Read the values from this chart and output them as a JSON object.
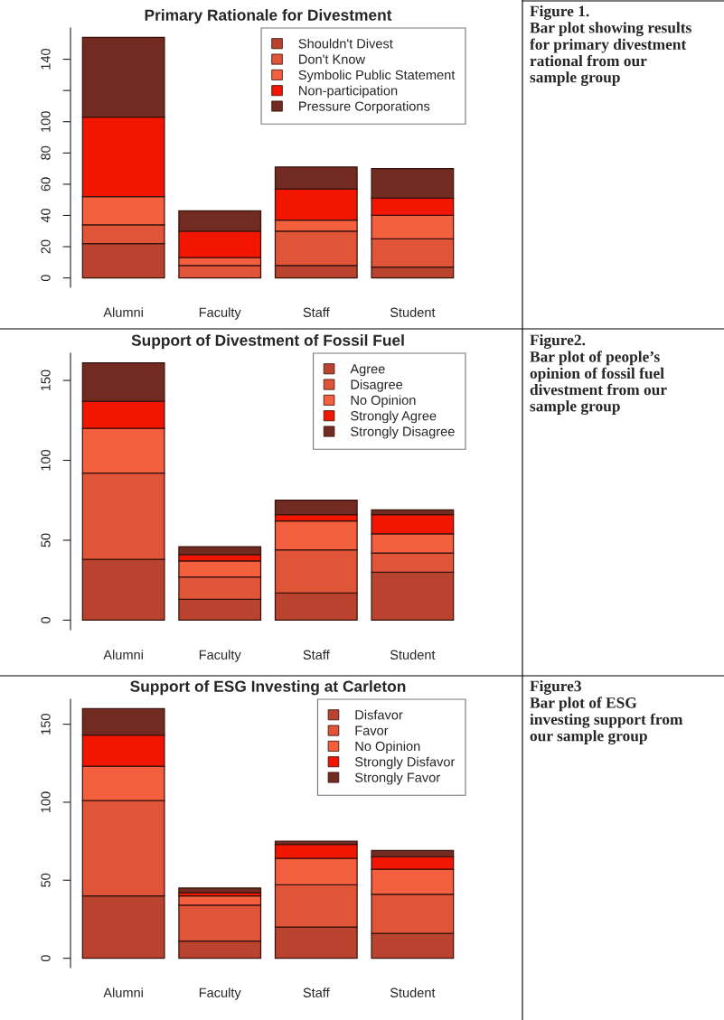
{
  "chart_data": [
    {
      "type": "bar",
      "stacked": true,
      "title": "Primary Rationale for Divestment",
      "categories": [
        "Alumni",
        "Faculty",
        "Staff",
        "Student"
      ],
      "series": [
        {
          "name": "Shouldn't Divest",
          "color": "#b9432e",
          "values": [
            22,
            0,
            8,
            7
          ]
        },
        {
          "name": "Don't Know",
          "color": "#e05438",
          "values": [
            12,
            8,
            22,
            18
          ]
        },
        {
          "name": "Symbolic Public Statement",
          "color": "#f45f3e",
          "values": [
            18,
            5,
            7,
            15
          ]
        },
        {
          "name": "Non-participation",
          "color": "#f21500",
          "values": [
            51,
            17,
            20,
            11
          ]
        },
        {
          "name": "Pressure Corporations",
          "color": "#712b20",
          "values": [
            51,
            13,
            14,
            19
          ]
        }
      ],
      "ylim": [
        -6,
        160
      ],
      "yticks": [
        0,
        20,
        40,
        60,
        80,
        100,
        {
          "value": 120,
          "label": null
        },
        140
      ],
      "legend": "top right",
      "grid": false,
      "annotations": [
        "Figure 1.\nBar plot showing results\nfor primary divestment\nrational from our\nsample group"
      ]
    },
    {
      "type": "bar",
      "stacked": true,
      "title": "Support of Divestment of Fossil Fuel",
      "categories": [
        "Alumni",
        "Faculty",
        "Staff",
        "Student"
      ],
      "series": [
        {
          "name": "Agree",
          "color": "#b9432e",
          "values": [
            38,
            13,
            17,
            30
          ]
        },
        {
          "name": "Disagree",
          "color": "#e05438",
          "values": [
            54,
            14,
            27,
            12
          ]
        },
        {
          "name": "No Opinion",
          "color": "#f45f3e",
          "values": [
            28,
            10,
            18,
            12
          ]
        },
        {
          "name": "Strongly Agree",
          "color": "#f21500",
          "values": [
            17,
            4,
            4,
            12
          ]
        },
        {
          "name": "Strongly Disagree",
          "color": "#712b20",
          "values": [
            24,
            5,
            9,
            3
          ]
        }
      ],
      "ylim": [
        -6,
        167
      ],
      "yticks": [
        0,
        50,
        100,
        150
      ],
      "legend": "top right",
      "grid": false,
      "annotations": [
        "Figure2.\nBar plot of people’s\nopinion of fossil fuel\ndivestment from our\nsample group"
      ]
    },
    {
      "type": "bar",
      "stacked": true,
      "title": "Support of ESG Investing at Carleton",
      "categories": [
        "Alumni",
        "Faculty",
        "Staff",
        "Student"
      ],
      "series": [
        {
          "name": "Disfavor",
          "color": "#b9432e",
          "values": [
            40,
            11,
            20,
            16
          ]
        },
        {
          "name": "Favor",
          "color": "#e05438",
          "values": [
            61,
            23,
            27,
            25
          ]
        },
        {
          "name": "No Opinion",
          "color": "#f45f3e",
          "values": [
            22,
            6,
            17,
            16
          ]
        },
        {
          "name": "Strongly Disfavor",
          "color": "#f21500",
          "values": [
            20,
            2,
            9,
            8
          ]
        },
        {
          "name": "Strongly Favor",
          "color": "#712b20",
          "values": [
            17,
            3,
            2,
            4
          ]
        }
      ],
      "ylim": [
        -6,
        166
      ],
      "yticks": [
        0,
        50,
        100,
        150
      ],
      "legend": "top right",
      "grid": false,
      "annotations": [
        "Figure3\nBar plot of ESG\ninvesting support from\nour sample group"
      ]
    }
  ]
}
